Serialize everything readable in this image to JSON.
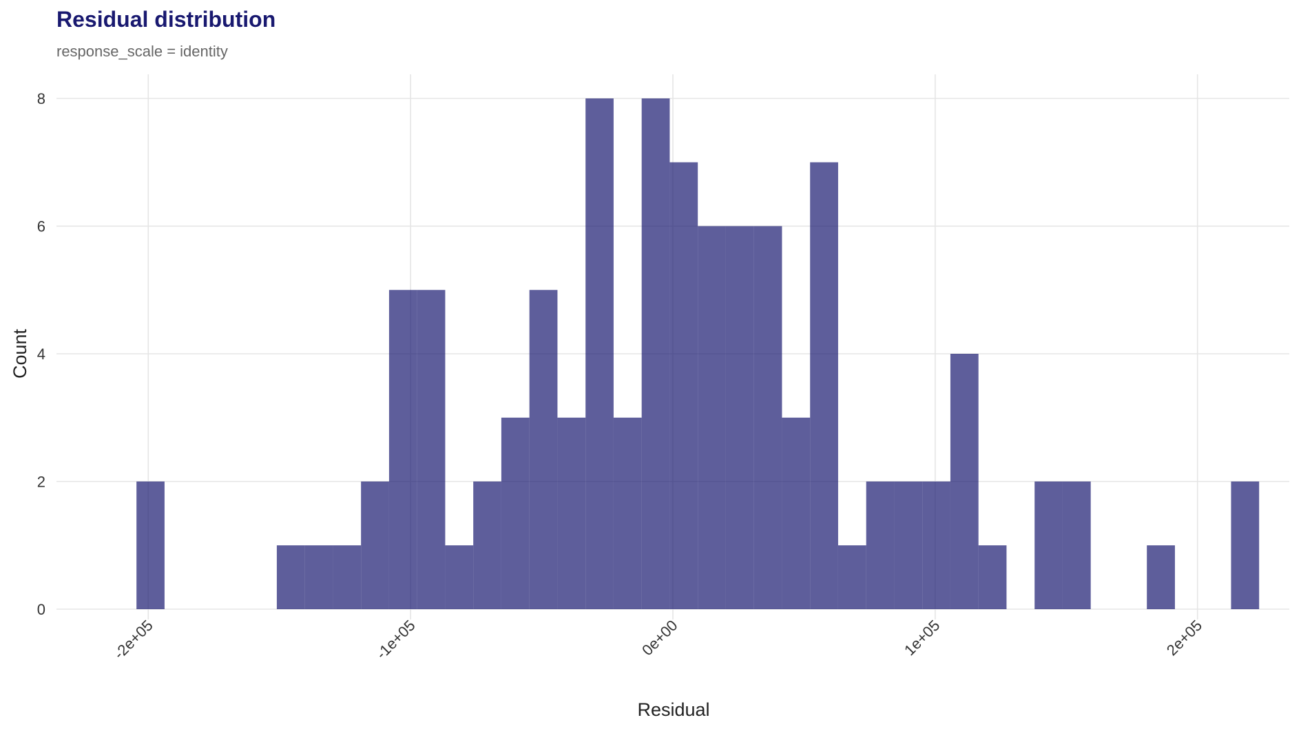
{
  "chart_data": {
    "type": "bar",
    "title": "Residual distribution",
    "subtitle": "response_scale = identity",
    "xlabel": "Residual",
    "ylabel": "Count",
    "bin_width": 10700,
    "bin_start": -204500,
    "counts": [
      2,
      0,
      0,
      0,
      0,
      1,
      1,
      1,
      2,
      5,
      5,
      1,
      2,
      3,
      5,
      3,
      8,
      3,
      8,
      7,
      6,
      6,
      6,
      3,
      7,
      1,
      2,
      2,
      2,
      4,
      1,
      0,
      2,
      2,
      0,
      0,
      1,
      0,
      0,
      2
    ],
    "xlim": [
      -235000,
      235000
    ],
    "ylim": [
      0,
      8
    ],
    "x_ticks": [
      -200000,
      -100000,
      0,
      100000,
      200000
    ],
    "x_tick_labels": [
      "-2e+05",
      "-1e+05",
      "0e+00",
      "1e+05",
      "2e+05"
    ],
    "y_ticks": [
      0,
      2,
      4,
      6,
      8
    ],
    "y_tick_labels": [
      "0",
      "2",
      "4",
      "6",
      "8"
    ],
    "bar_color": "#191970",
    "bar_opacity": 0.7,
    "grid": true
  }
}
